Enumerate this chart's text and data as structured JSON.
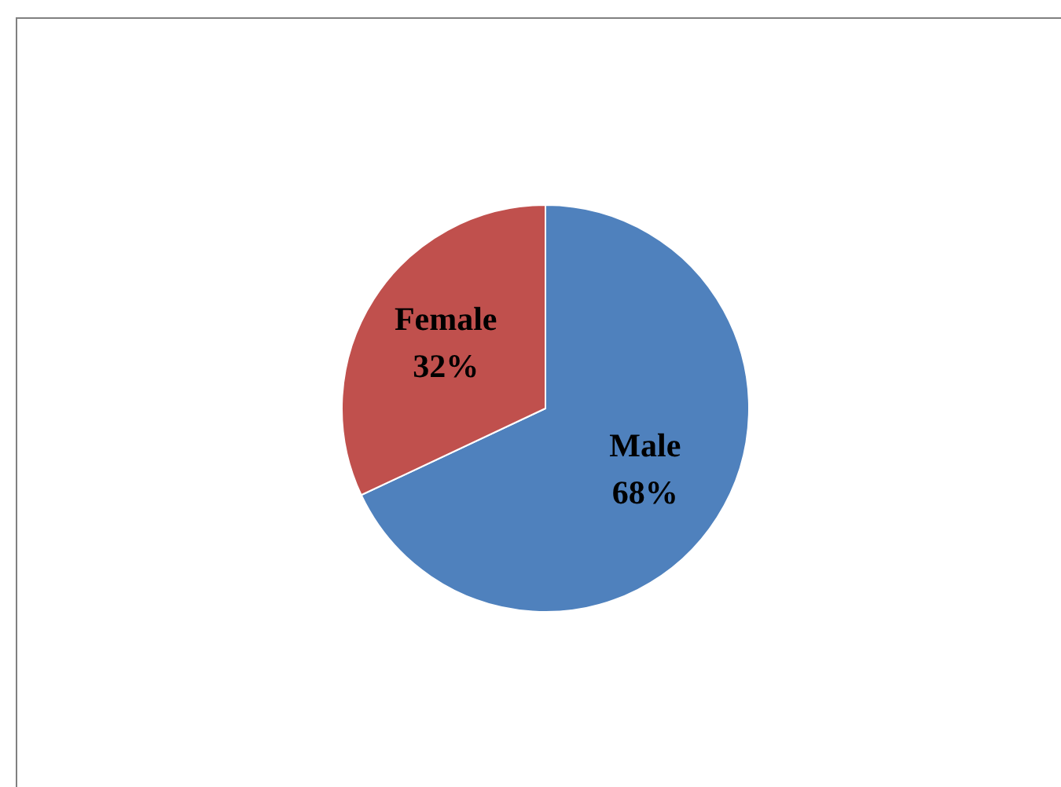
{
  "chart_data": {
    "type": "pie",
    "categories": [
      "Male",
      "Female"
    ],
    "values": [
      68,
      32
    ],
    "colors": [
      "#4f81bd",
      "#c0504d"
    ],
    "value_labels": [
      "68%",
      "32%"
    ]
  }
}
